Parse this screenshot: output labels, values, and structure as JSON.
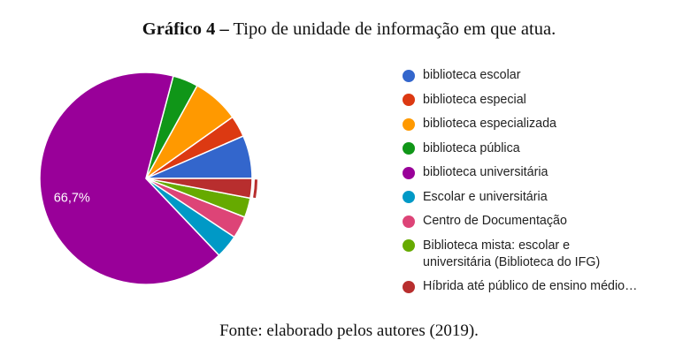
{
  "figure": {
    "title_bold": "Gráfico 4 –",
    "title_rest": "Tipo de unidade de informação em que atua.",
    "source": "Fonte: elaborado pelos autores (2019)."
  },
  "chart_data": {
    "type": "pie",
    "slice_order": "counterclockwise-from-east",
    "slices": [
      {
        "label": "biblioteca escolar",
        "value": 6.6,
        "color": "#3366cc"
      },
      {
        "label": "biblioteca especial",
        "value": 3.3,
        "color": "#dc3912"
      },
      {
        "label": "biblioteca especializada",
        "value": 7.2,
        "color": "#ff9900"
      },
      {
        "label": "biblioteca pública",
        "value": 3.9,
        "color": "#109618"
      },
      {
        "label": "biblioteca universitária",
        "value": 66.7,
        "color": "#990099",
        "data_label": "66,7%"
      },
      {
        "label": "Escolar e universitária",
        "value": 3.6,
        "color": "#0099c6"
      },
      {
        "label": "Centro de Documentação",
        "value": 3.4,
        "color": "#dd4477"
      },
      {
        "label": "Biblioteca mista: escolar e\nuniversitária (Biblioteca do IFG)",
        "value": 3.0,
        "color": "#66aa00"
      },
      {
        "label": "Híbrida até público de ensino médio…",
        "value": 3.0,
        "color": "#b82e2e",
        "highlighted": true
      }
    ],
    "legend_position": "right"
  }
}
